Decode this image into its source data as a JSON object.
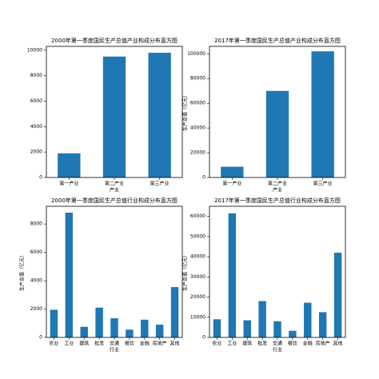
{
  "chart_data": [
    {
      "type": "bar",
      "title": "2000年第一季度国民生产总值产业构成分布直方图",
      "xlabel": "产业",
      "categories": [
        "第一产业",
        "第二产业",
        "第三产业"
      ],
      "values": [
        1900,
        9500,
        9800
      ],
      "color": "#1f77b4",
      "ylim": [
        0,
        10300
      ],
      "yticks": [
        0,
        2000,
        4000,
        6000,
        8000,
        10000
      ]
    },
    {
      "type": "bar",
      "title": "2017年第一季度国民生产总值产业构成分布直方图",
      "xlabel": "产业",
      "ylabel": "生产总值（亿元）",
      "categories": [
        "第一产业",
        "第二产业",
        "第三产业"
      ],
      "values": [
        8700,
        70000,
        102000
      ],
      "color": "#1f77b4",
      "ylim": [
        0,
        106000
      ],
      "yticks": [
        0,
        20000,
        40000,
        60000,
        80000,
        100000
      ]
    },
    {
      "type": "bar",
      "title": "2000年第一季度国民生产总值行业构成分布直方图",
      "xlabel": "行业",
      "ylabel": "生产总值（亿元）",
      "categories": [
        "农业",
        "工业",
        "建筑",
        "批发",
        "交通",
        "餐饮",
        "金融",
        "房地产",
        "其他"
      ],
      "values": [
        1950,
        8800,
        750,
        2100,
        1350,
        550,
        1250,
        900,
        3550
      ],
      "color": "#1f77b4",
      "ylim": [
        0,
        9250
      ],
      "yticks": [
        0,
        2000,
        4000,
        6000,
        8000
      ]
    },
    {
      "type": "bar",
      "title": "2017年第一季度国民生产总值行业构成分布直方图",
      "xlabel": "行业",
      "ylabel": "生产总值（亿元）",
      "categories": [
        "农业",
        "工业",
        "建筑",
        "批发",
        "交通",
        "餐饮",
        "金融",
        "房地产",
        "其他"
      ],
      "values": [
        9000,
        61500,
        8500,
        18000,
        8000,
        3300,
        17200,
        12500,
        42000
      ],
      "color": "#1f77b4",
      "ylim": [
        0,
        65000
      ],
      "yticks": [
        0,
        10000,
        20000,
        30000,
        40000,
        50000,
        60000
      ]
    }
  ]
}
